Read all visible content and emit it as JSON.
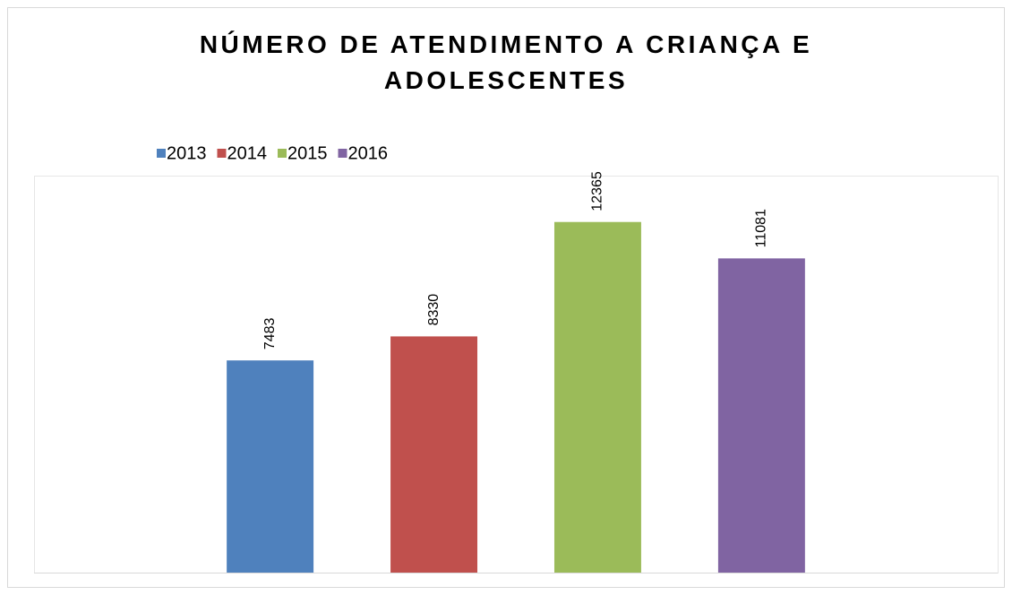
{
  "chart_data": {
    "type": "bar",
    "title": "NÚMERO DE ATENDIMENTO A CRIANÇA E ADOLESCENTES",
    "categories": [
      null
    ],
    "series": [
      {
        "name": "2013",
        "color": "#4f81bd",
        "values": [
          7483
        ]
      },
      {
        "name": "2014",
        "color": "#c0504d",
        "values": [
          8330
        ]
      },
      {
        "name": "2015",
        "color": "#9bbb59",
        "values": [
          12365
        ]
      },
      {
        "name": "2016",
        "color": "#8064a2",
        "values": [
          11081
        ]
      }
    ],
    "ylim": [
      0,
      14000
    ],
    "legend": "top"
  }
}
